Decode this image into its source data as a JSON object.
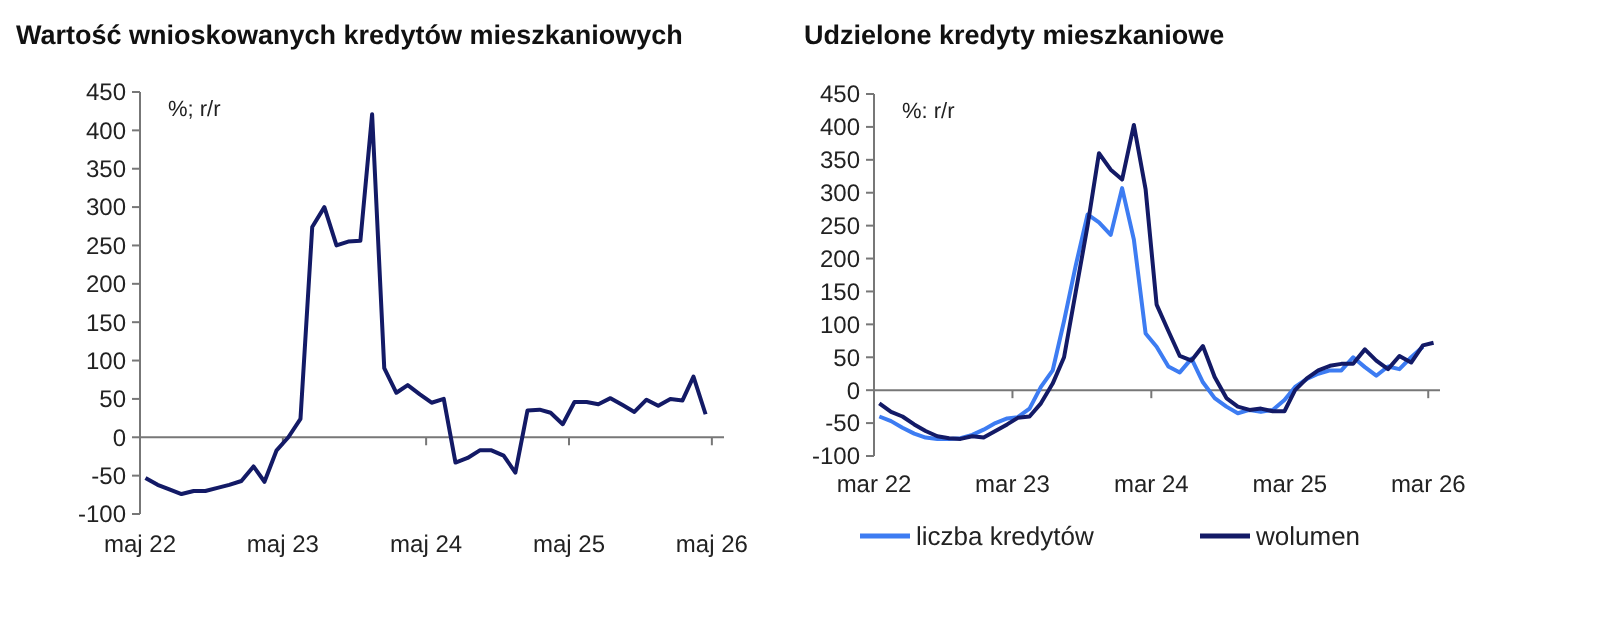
{
  "chart_data": [
    {
      "type": "line",
      "title": "Wartość wnioskowanych kredytów mieszkaniowych",
      "ylabel": "%; r/r",
      "x": [
        "2022-05-15",
        "2022-06-15",
        "2022-07-15",
        "2022-08-15",
        "2022-09-15",
        "2022-10-15",
        "2022-11-15",
        "2022-12-15",
        "2023-01-15",
        "2023-02-15",
        "2023-03-15",
        "2023-04-15",
        "2023-05-15",
        "2023-06-15",
        "2023-07-15",
        "2023-08-15",
        "2023-09-15",
        "2023-10-15",
        "2023-11-15",
        "2023-12-15",
        "2024-01-15",
        "2024-02-15",
        "2024-03-15",
        "2024-04-15",
        "2024-05-15",
        "2024-06-15",
        "2024-07-15",
        "2024-08-15",
        "2024-09-15",
        "2024-10-15",
        "2024-11-15",
        "2024-12-15",
        "2025-01-15",
        "2025-02-15",
        "2025-03-15",
        "2025-04-15",
        "2025-05-15",
        "2025-06-15",
        "2025-07-15",
        "2025-08-15",
        "2025-09-15",
        "2025-10-15",
        "2025-11-15",
        "2025-12-15",
        "2026-01-15",
        "2026-02-15",
        "2026-03-15",
        "2026-04-15"
      ],
      "series": [
        {
          "color": "#131a66",
          "values": [
            -53,
            -62,
            -68,
            -74,
            -70,
            -70,
            -66,
            -62,
            -57,
            -38,
            -58,
            -17,
            0,
            24,
            274,
            300,
            250,
            255,
            256,
            421,
            90,
            58,
            68,
            56,
            45,
            50,
            -33,
            -27,
            -17,
            -17,
            -24,
            -46,
            35,
            36,
            32,
            17,
            46,
            46,
            43,
            51,
            42,
            33,
            49,
            41,
            50,
            48,
            79,
            30
          ]
        }
      ],
      "xlim": [
        "2022-05-01",
        "2026-06-01"
      ],
      "xticks": [
        {
          "value": "2022-05-01",
          "label": "maj 22"
        },
        {
          "value": "2023-05-01",
          "label": "maj 23"
        },
        {
          "value": "2024-05-01",
          "label": "maj 24"
        },
        {
          "value": "2025-05-01",
          "label": "maj 25"
        },
        {
          "value": "2026-05-01",
          "label": "maj 26"
        }
      ],
      "ylim": [
        -100,
        450
      ],
      "yticks": [
        -100,
        -50,
        0,
        50,
        100,
        150,
        200,
        250,
        300,
        350,
        400,
        450
      ]
    },
    {
      "type": "line",
      "title": "Udzielone kredyty mieszkaniowe",
      "ylabel": "%: r/r",
      "legend": "bottom",
      "x": [
        "2022-03-15",
        "2022-04-15",
        "2022-05-15",
        "2022-06-15",
        "2022-07-15",
        "2022-08-15",
        "2022-09-15",
        "2022-10-15",
        "2022-11-15",
        "2022-12-15",
        "2023-01-15",
        "2023-02-15",
        "2023-03-15",
        "2023-04-15",
        "2023-05-15",
        "2023-06-15",
        "2023-07-15",
        "2023-08-15",
        "2023-09-15",
        "2023-10-15",
        "2023-11-15",
        "2023-12-15",
        "2024-01-15",
        "2024-02-15",
        "2024-03-15",
        "2024-04-15",
        "2024-05-15",
        "2024-06-15",
        "2024-07-15",
        "2024-08-15",
        "2024-09-15",
        "2024-10-15",
        "2024-11-15",
        "2024-12-15",
        "2025-01-15",
        "2025-02-15",
        "2025-03-15",
        "2025-04-15",
        "2025-05-15",
        "2025-06-15",
        "2025-07-15",
        "2025-08-15",
        "2025-09-15",
        "2025-10-15",
        "2025-11-15",
        "2025-12-15",
        "2026-01-15",
        "2026-02-15",
        "2026-03-15"
      ],
      "series": [
        {
          "name": "liczba kredytów",
          "color": "#3d7cf2",
          "values": [
            -40,
            -47,
            -57,
            -66,
            -72,
            -74,
            -74,
            -73,
            -68,
            -60,
            -50,
            -43,
            -41,
            -28,
            5,
            30,
            105,
            190,
            267,
            255,
            236,
            307,
            229,
            86,
            66,
            36,
            27,
            48,
            12,
            -12,
            -25,
            -35,
            -30,
            -33,
            -30,
            -15,
            5,
            17,
            25,
            30,
            30,
            50,
            35,
            22,
            36,
            32,
            50,
            66,
            null
          ]
        },
        {
          "name": "wolumen",
          "color": "#131a66",
          "values": [
            -20,
            -33,
            -40,
            -52,
            -62,
            -70,
            -73,
            -74,
            -70,
            -72,
            -62,
            -52,
            -42,
            -40,
            -20,
            10,
            50,
            150,
            250,
            360,
            335,
            320,
            403,
            305,
            130,
            90,
            52,
            45,
            67,
            20,
            -12,
            -25,
            -30,
            -28,
            -32,
            -32,
            0,
            18,
            30,
            37,
            40,
            40,
            62,
            45,
            32,
            52,
            42,
            68,
            72
          ]
        }
      ],
      "xlim": [
        "2022-03-01",
        "2026-04-01"
      ],
      "xticks": [
        {
          "value": "2022-03-01",
          "label": "mar 22"
        },
        {
          "value": "2023-03-01",
          "label": "mar 23"
        },
        {
          "value": "2024-03-01",
          "label": "mar 24"
        },
        {
          "value": "2025-03-01",
          "label": "mar 25"
        },
        {
          "value": "2026-03-01",
          "label": "mar 26"
        }
      ],
      "ylim": [
        -100,
        450
      ],
      "yticks": [
        -100,
        -50,
        0,
        50,
        100,
        150,
        200,
        250,
        300,
        350,
        400,
        450
      ]
    }
  ]
}
